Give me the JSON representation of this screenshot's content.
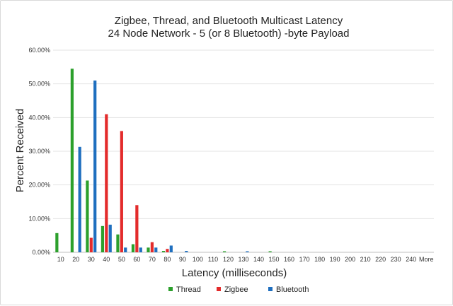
{
  "chart_data": {
    "type": "bar",
    "title": "Zigbee, Thread, and Bluetooth Multicast Latency",
    "subtitle": "24 Node Network - 5 (or 8 Bluetooth) -byte Payload",
    "xlabel": "Latency (milliseconds)",
    "ylabel": "Percent Received",
    "ylim": [
      0,
      60
    ],
    "yticks": [
      "0.00%",
      "10.00%",
      "20.00%",
      "30.00%",
      "40.00%",
      "50.00%",
      "60.00%"
    ],
    "grid": true,
    "legend_position": "bottom",
    "categories": [
      "10",
      "20",
      "30",
      "40",
      "50",
      "60",
      "70",
      "80",
      "90",
      "100",
      "110",
      "120",
      "130",
      "140",
      "150",
      "160",
      "170",
      "180",
      "190",
      "200",
      "210",
      "220",
      "230",
      "240",
      "More"
    ],
    "series": [
      {
        "name": "Thread",
        "color": "#2ca02c",
        "values": [
          5.7,
          54.5,
          21.3,
          7.8,
          5.3,
          2.4,
          1.4,
          0.4,
          0,
          0,
          0,
          0.3,
          0,
          0,
          0.3,
          0,
          0,
          0,
          0,
          0,
          0,
          0,
          0,
          0,
          0
        ]
      },
      {
        "name": "Zigbee",
        "color": "#e32b2b",
        "values": [
          0,
          0,
          4.3,
          41.0,
          36.0,
          14.0,
          3.0,
          1.0,
          0,
          0,
          0,
          0,
          0,
          0,
          0,
          0,
          0,
          0,
          0,
          0,
          0,
          0,
          0,
          0,
          0
        ]
      },
      {
        "name": "Bluetooth",
        "color": "#1f6fbf",
        "values": [
          0,
          31.3,
          51.0,
          8.2,
          1.4,
          1.4,
          1.4,
          2.0,
          0.4,
          0,
          0,
          0,
          0.3,
          0,
          0,
          0,
          0,
          0,
          0,
          0,
          0,
          0,
          0,
          0,
          0
        ]
      }
    ]
  }
}
